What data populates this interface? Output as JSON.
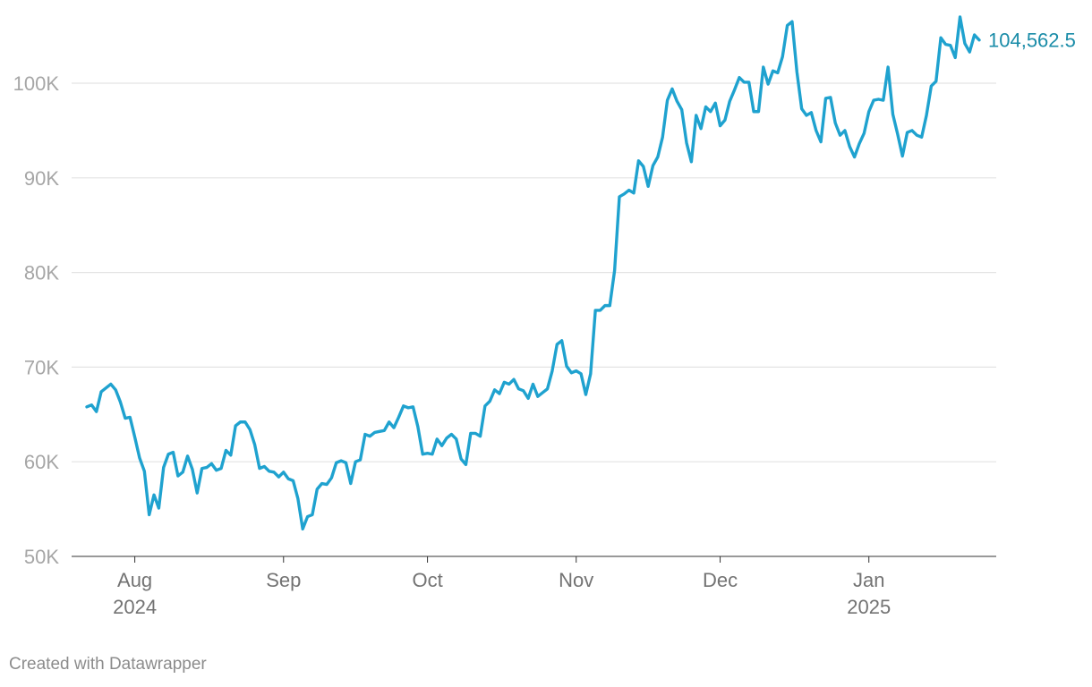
{
  "chart_data": {
    "type": "line",
    "title": "",
    "xlabel": "",
    "ylabel": "",
    "ylim": [
      50000,
      108000
    ],
    "y_ticks": [
      {
        "value": 50000,
        "label": "50K"
      },
      {
        "value": 60000,
        "label": "60K"
      },
      {
        "value": 70000,
        "label": "70K"
      },
      {
        "value": 80000,
        "label": "80K"
      },
      {
        "value": 90000,
        "label": "90K"
      },
      {
        "value": 100000,
        "label": "100K"
      }
    ],
    "x_ticks": [
      {
        "date": "2024-08-01",
        "label": "Aug",
        "sublabel": "2024"
      },
      {
        "date": "2024-09-01",
        "label": "Sep",
        "sublabel": ""
      },
      {
        "date": "2024-10-01",
        "label": "Oct",
        "sublabel": ""
      },
      {
        "date": "2024-11-01",
        "label": "Nov",
        "sublabel": ""
      },
      {
        "date": "2024-12-01",
        "label": "Dec",
        "sublabel": ""
      },
      {
        "date": "2025-01-01",
        "label": "Jan",
        "sublabel": "2025"
      }
    ],
    "grid": true,
    "line_color": "#1fa2cf",
    "end_label": "104,562.5",
    "series": [
      {
        "start_date": "2024-07-22",
        "values": [
          65800,
          66000,
          65300,
          67400,
          67800,
          68200,
          67600,
          66300,
          64600,
          64700,
          62600,
          60400,
          59000,
          54400,
          56500,
          55100,
          59400,
          60800,
          61000,
          58500,
          58900,
          60600,
          59200,
          56700,
          59300,
          59400,
          59800,
          59100,
          59300,
          61200,
          60700,
          63800,
          64200,
          64200,
          63400,
          61800,
          59300,
          59500,
          59000,
          58900,
          58400,
          58900,
          58200,
          58000,
          56100,
          52900,
          54200,
          54400,
          57100,
          57700,
          57600,
          58300,
          59900,
          60100,
          59900,
          57700,
          60000,
          60200,
          62900,
          62700,
          63100,
          63200,
          63300,
          64200,
          63600,
          64700,
          65900,
          65700,
          65800,
          63700,
          60800,
          60900,
          60800,
          62400,
          61700,
          62500,
          62900,
          62400,
          60300,
          59700,
          63000,
          63000,
          62700,
          65900,
          66400,
          67600,
          67200,
          68400,
          68200,
          68700,
          67700,
          67500,
          66700,
          68200,
          66900,
          67300,
          67700,
          69600,
          72400,
          72800,
          70100,
          69400,
          69600,
          69300,
          67100,
          69300,
          76000,
          76000,
          76500,
          76500,
          80200,
          88000,
          88300,
          88700,
          88400,
          91800,
          91200,
          89100,
          91300,
          92200,
          94300,
          98200,
          99400,
          98100,
          97200,
          93700,
          91700,
          96600,
          95200,
          97500,
          97000,
          97900,
          95500,
          96100,
          98100,
          99300,
          100600,
          100100,
          100100,
          97000,
          97000,
          101700,
          99900,
          101300,
          101100,
          102800,
          106100,
          106500,
          101200,
          97300,
          96600,
          96900,
          95000,
          93800,
          98400,
          98500,
          95800,
          94500,
          95000,
          93300,
          92200,
          93600,
          94700,
          97000,
          98200,
          98300,
          98200,
          101700,
          96700,
          94600,
          92300,
          94800,
          95000,
          94500,
          94300,
          96600,
          99700,
          100200,
          104800,
          104100,
          104000,
          102700,
          107000,
          104200,
          103300,
          105100,
          104562.5
        ]
      }
    ]
  },
  "footer": {
    "credit": "Created with Datawrapper"
  }
}
